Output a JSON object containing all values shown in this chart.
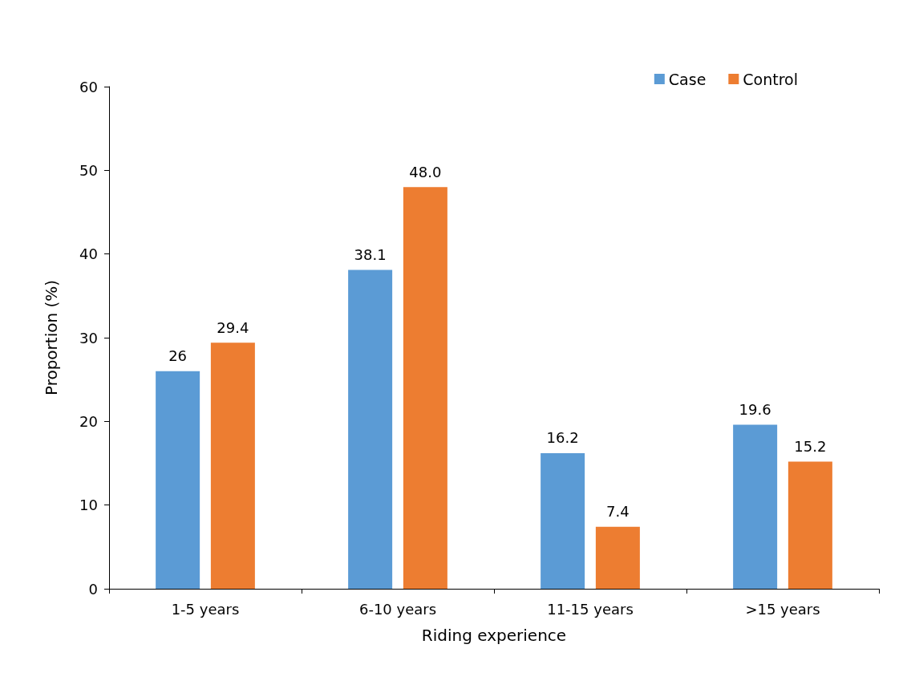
{
  "chart_data": {
    "type": "bar",
    "xlabel": "Riding experience",
    "ylabel": "Proportion (%)",
    "categories": [
      "1-5 years",
      "6-10 years",
      "11-15 years",
      ">15 years"
    ],
    "series": [
      {
        "name": "Case",
        "color": "#5b9bd5",
        "values": [
          26,
          38.1,
          16.2,
          19.6
        ],
        "value_labels": [
          "26",
          "38.1",
          "16.2",
          "19.6"
        ]
      },
      {
        "name": "Control",
        "color": "#ed7d31",
        "values": [
          29.4,
          48.0,
          7.4,
          15.2
        ],
        "value_labels": [
          "29.4",
          "48.0",
          "7.4",
          "15.2"
        ]
      }
    ],
    "ylim": [
      0,
      60
    ],
    "yticks": [
      0,
      10,
      20,
      30,
      40,
      50,
      60
    ],
    "grid": false,
    "legend": "top right"
  }
}
